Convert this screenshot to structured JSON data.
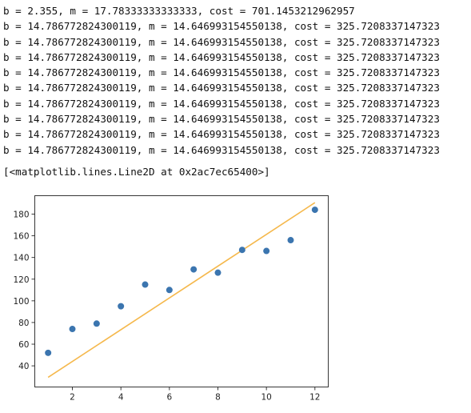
{
  "output": {
    "lines": [
      "b = 2.355, m = 17.78333333333333, cost = 701.1453212962957",
      "b = 14.786772824300119, m = 14.646993154550138, cost = 325.7208337147323",
      "b = 14.786772824300119, m = 14.646993154550138, cost = 325.7208337147323",
      "b = 14.786772824300119, m = 14.646993154550138, cost = 325.7208337147323",
      "b = 14.786772824300119, m = 14.646993154550138, cost = 325.7208337147323",
      "b = 14.786772824300119, m = 14.646993154550138, cost = 325.7208337147323",
      "b = 14.786772824300119, m = 14.646993154550138, cost = 325.7208337147323",
      "b = 14.786772824300119, m = 14.646993154550138, cost = 325.7208337147323",
      "b = 14.786772824300119, m = 14.646993154550138, cost = 325.7208337147323",
      "b = 14.786772824300119, m = 14.646993154550138, cost = 325.7208337147323"
    ],
    "repr": "[<matplotlib.lines.Line2D at 0x2ac7ec65400>]"
  },
  "chart_data": {
    "type": "scatter",
    "title": "",
    "xlabel": "",
    "ylabel": "",
    "xlim": [
      0.45,
      12.55
    ],
    "ylim": [
      20.5,
      197
    ],
    "xticks": [
      2,
      4,
      6,
      8,
      10,
      12
    ],
    "yticks": [
      40,
      60,
      80,
      100,
      120,
      140,
      160,
      180
    ],
    "grid": false,
    "legend": "none",
    "scatter": {
      "x": [
        1,
        2,
        3,
        4,
        5,
        6,
        7,
        8,
        9,
        10,
        11,
        12
      ],
      "y": [
        52,
        74,
        79,
        95,
        115,
        110,
        129,
        126,
        147,
        146,
        156,
        184
      ],
      "color": "#3b75af"
    },
    "line": {
      "x": [
        1,
        12
      ],
      "y": [
        29.4,
        190.6
      ],
      "color": "#f5b84c"
    }
  }
}
